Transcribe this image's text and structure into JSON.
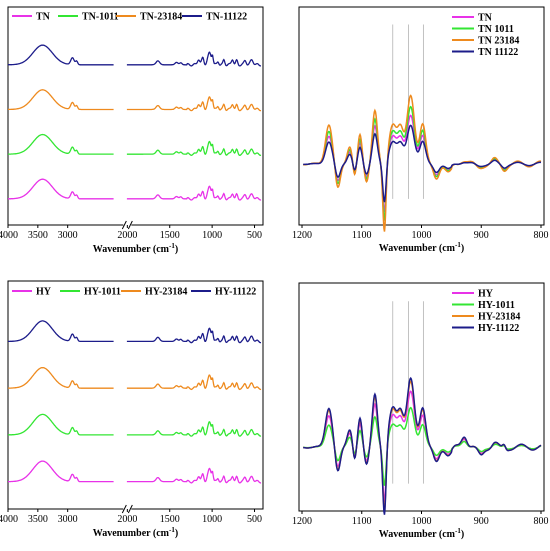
{
  "chart_data": [
    {
      "type": "line",
      "panel": "a",
      "xlabel": "Wavenumber (cm",
      "xlabel_sup": "-1",
      "xlabel_end": ")",
      "x_ticks": [
        "4000",
        "3500",
        "3000",
        "2000",
        "1500",
        "1000",
        "500"
      ],
      "x_axis_break": true,
      "legend_position": "top",
      "legend_orientation": "horizontal",
      "series": [
        {
          "name": "TN",
          "color": "#e832e8",
          "offset": 0
        },
        {
          "name": "TN-1011",
          "color": "#33e633",
          "offset": 1
        },
        {
          "name": "TN-23184",
          "color": "#ee8a1e",
          "offset": 2
        },
        {
          "name": "TN-11122",
          "color": "#1c1c8a",
          "offset": 3
        }
      ]
    },
    {
      "type": "line",
      "panel": "b",
      "xlabel": "Wavenumber (cm",
      "xlabel_sup": "-1",
      "xlabel_end": ")",
      "x_ticks": [
        "1200",
        "1100",
        "1000",
        "900",
        "800"
      ],
      "xlim": [
        1205,
        795
      ],
      "reference_lines": [
        1048,
        1022,
        997
      ],
      "legend_position": "top-right",
      "series": [
        {
          "name": "TN",
          "color": "#e832e8",
          "scale": 0.78
        },
        {
          "name": "TN 1011",
          "color": "#33e633",
          "scale": 0.92
        },
        {
          "name": "TN 23184",
          "color": "#ee8a1e",
          "scale": 1.1
        },
        {
          "name": "TN 11122",
          "color": "#1c1c8a",
          "scale": 0.62
        }
      ]
    },
    {
      "type": "line",
      "panel": "c",
      "xlabel": "Wavenumber (cm",
      "xlabel_sup": "-1",
      "xlabel_end": ")",
      "x_ticks": [
        "4000",
        "3500",
        "3000",
        "2000",
        "1500",
        "1000",
        "500"
      ],
      "x_axis_break": true,
      "legend_position": "top",
      "legend_orientation": "horizontal",
      "series": [
        {
          "name": "HY",
          "color": "#e832e8",
          "offset": 0
        },
        {
          "name": "HY-1011",
          "color": "#33e633",
          "offset": 1
        },
        {
          "name": "HY-23184",
          "color": "#ee8a1e",
          "offset": 2
        },
        {
          "name": "HY-11122",
          "color": "#1c1c8a",
          "offset": 3
        }
      ]
    },
    {
      "type": "line",
      "panel": "d",
      "xlabel": "Wavenumber (cm",
      "xlabel_sup": "-1",
      "xlabel_end": ")",
      "x_ticks": [
        "1200",
        "1100",
        "1000",
        "900",
        "800"
      ],
      "xlim": [
        1205,
        795
      ],
      "reference_lines": [
        1048,
        1022,
        997
      ],
      "legend_position": "top-right",
      "series": [
        {
          "name": "HY",
          "color": "#e832e8",
          "scale": 0.85
        },
        {
          "name": "HY-1011",
          "color": "#33e633",
          "scale": 0.6
        },
        {
          "name": "HY-23184",
          "color": "#ee8a1e",
          "scale": 1.0
        },
        {
          "name": "HY-11122",
          "color": "#1c1c8a",
          "scale": 1.05
        }
      ]
    }
  ]
}
